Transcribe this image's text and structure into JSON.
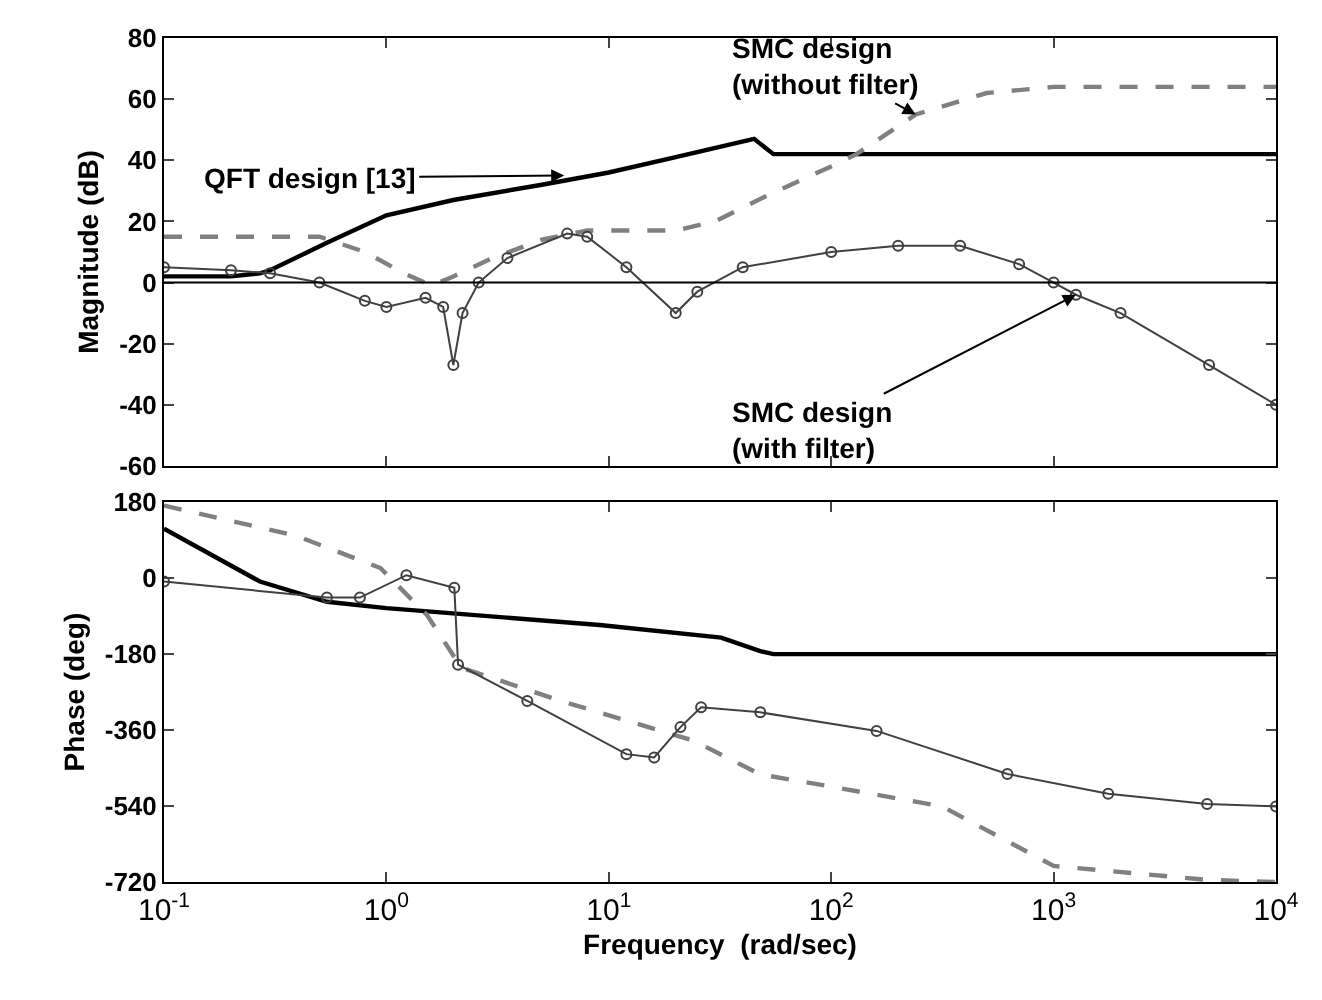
{
  "chart_data": [
    {
      "type": "line",
      "ylabel": "Magnitude (dB)",
      "log": "x",
      "tick_labels": "y",
      "xlim": [
        0.1,
        10000
      ],
      "xticks": [
        {
          "value": 0.1,
          "label": null
        },
        {
          "value": 1,
          "label": null
        },
        {
          "value": 10,
          "label": null
        },
        {
          "value": 100,
          "label": null
        },
        {
          "value": 1000,
          "label": null
        },
        {
          "value": 10000,
          "label": null
        }
      ],
      "ylim": [
        -60,
        80
      ],
      "yticks": [
        -60,
        -40,
        -20,
        0,
        20,
        40,
        60,
        80
      ],
      "series": [
        {
          "color": "#000000",
          "line_style": "solid",
          "marker": "none",
          "x": [
            0.1,
            0.2,
            0.27,
            0.3,
            0.54,
            1,
            2,
            5,
            10,
            20,
            45,
            55,
            100,
            1000,
            10000
          ],
          "values": [
            2,
            2,
            3,
            4,
            13,
            22,
            27,
            32,
            36,
            41,
            47,
            42,
            42,
            42,
            42
          ]
        },
        {
          "color": "#808080",
          "line_style": "dashed",
          "marker": "none",
          "x": [
            0.1,
            0.5,
            0.8,
            1.2,
            1.6,
            2,
            3,
            5,
            8,
            20,
            30,
            50,
            100,
            130,
            240,
            500,
            1000,
            10000
          ],
          "values": [
            15,
            15,
            10,
            3,
            -1,
            2,
            8,
            14,
            17,
            17,
            20,
            28,
            38,
            42,
            55,
            62,
            64,
            64
          ]
        },
        {
          "color": "#404040",
          "line_style": "solid",
          "marker": "circle",
          "x": [
            0.1,
            0.2,
            0.3,
            0.5,
            0.8,
            1,
            1.5,
            1.8,
            2,
            2.2,
            2.6,
            3.5,
            6.5,
            8,
            12,
            20,
            25,
            40,
            100,
            200,
            380,
            700,
            1000,
            1260,
            2000,
            5000,
            10000
          ],
          "values": [
            5,
            4,
            3,
            0,
            -6,
            -8,
            -5,
            -8,
            -27,
            -10,
            0,
            8,
            16,
            15,
            5,
            -10,
            -3,
            5,
            10,
            12,
            12,
            6,
            0,
            -4,
            -10,
            -27,
            -40
          ]
        }
      ],
      "ref_lines": [
        {
          "axis": "y",
          "value": 0,
          "color": "#000000"
        }
      ],
      "annotations": [
        {
          "text": "QFT design [13]",
          "x": 6.3,
          "y": 35
        },
        {
          "text": "SMC design\n(without filter)",
          "x": 240,
          "y": 55
        },
        {
          "text": "SMC design\n(with filter)",
          "x": 1260,
          "y": -4
        }
      ]
    },
    {
      "type": "line",
      "xlabel": "Frequency  (rad/sec)",
      "ylabel": "Phase (deg)",
      "log": "x",
      "xlim": [
        0.1,
        10000
      ],
      "xticks": [
        {
          "value": 0.1,
          "label": "10$^{-1}$"
        },
        {
          "value": 1,
          "label": "10$^{0}$"
        },
        {
          "value": 10,
          "label": "10$^{1}$"
        },
        {
          "value": 100,
          "label": "10$^{2}$"
        },
        {
          "value": 1000,
          "label": "10$^{3}$"
        },
        {
          "value": 10000,
          "label": "10$^{4}$"
        }
      ],
      "ylim": [
        -720,
        180
      ],
      "yticks": [
        -720,
        -540,
        -360,
        -180,
        0,
        180
      ],
      "series": [
        {
          "color": "#000000",
          "line_style": "solid",
          "marker": "none",
          "x": [
            0.1,
            0.27,
            0.54,
            1,
            9.1,
            32,
            48,
            55,
            10000
          ],
          "values": [
            117,
            -8,
            -56,
            -71,
            -111,
            -141,
            -173,
            -180,
            -180
          ]
        },
        {
          "color": "#808080",
          "line_style": "dashed",
          "marker": "none",
          "x": [
            0.1,
            0.39,
            0.94,
            1.52,
            2.17,
            6.1,
            24,
            48,
            100,
            316,
            1000,
            4900,
            10000
          ],
          "values": [
            172,
            101,
            24,
            -87,
            -212,
            -291,
            -385,
            -465,
            -494,
            -541,
            -682,
            -715,
            -720
          ]
        },
        {
          "color": "#404040",
          "line_style": "solid",
          "marker": "circle",
          "x": [
            0.1,
            0.54,
            0.76,
            1.23,
            2.02,
            2.1,
            4.3,
            12,
            16,
            21,
            26,
            48,
            160,
            620,
            1760,
            4900,
            10000
          ],
          "values": [
            -8,
            -46,
            -46,
            7,
            -23,
            -205,
            -291,
            -417,
            -425,
            -353,
            -306,
            -318,
            -362,
            -464,
            -511,
            -535,
            -541
          ]
        }
      ]
    }
  ]
}
